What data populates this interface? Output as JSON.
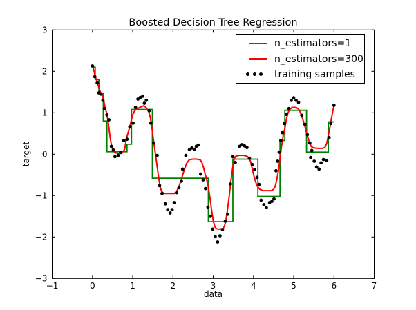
{
  "figure": {
    "kind": "matplotlib-figure",
    "background": "#ffffff"
  },
  "colors": {
    "estimator1_line": "#008000",
    "estimator300_line": "#ff0000",
    "scatter": "#000000",
    "axes": "#000000"
  },
  "chart_data": {
    "type": "line",
    "title": "Boosted Decision Tree Regression",
    "xlabel": "data",
    "ylabel": "target",
    "xlim": [
      -1,
      7
    ],
    "ylim": [
      -3,
      3
    ],
    "x_ticks": [
      -1,
      0,
      1,
      2,
      3,
      4,
      5,
      6,
      7
    ],
    "x_tick_labels": [
      "−1",
      "0",
      "1",
      "2",
      "3",
      "4",
      "5",
      "6",
      "7"
    ],
    "y_ticks": [
      -3,
      -2,
      -1,
      0,
      1,
      2,
      3
    ],
    "y_tick_labels": [
      "−3",
      "−2",
      "−1",
      "0",
      "1",
      "2",
      "3"
    ],
    "grid": false,
    "legend_position": "upper right",
    "series": [
      {
        "name": "n_estimators=1",
        "type": "step",
        "color": "#008000",
        "segments": [
          [
            0.0,
            0.07,
            2.1
          ],
          [
            0.07,
            0.16,
            1.8
          ],
          [
            0.16,
            0.27,
            1.47
          ],
          [
            0.27,
            0.36,
            0.8
          ],
          [
            0.36,
            0.86,
            0.06
          ],
          [
            0.86,
            0.97,
            0.24
          ],
          [
            0.97,
            1.49,
            1.08
          ],
          [
            1.49,
            2.88,
            -0.58
          ],
          [
            2.88,
            3.49,
            -1.63
          ],
          [
            3.49,
            4.11,
            -0.12
          ],
          [
            4.11,
            4.66,
            -1.02
          ],
          [
            4.66,
            4.78,
            0.33
          ],
          [
            4.78,
            5.32,
            1.06
          ],
          [
            5.32,
            5.86,
            0.05
          ],
          [
            5.86,
            6.0,
            0.78
          ]
        ]
      },
      {
        "name": "n_estimators=300",
        "type": "line",
        "color": "#ff0000",
        "points": [
          [
            0.0,
            2.15
          ],
          [
            0.04,
            2.0
          ],
          [
            0.08,
            1.85
          ],
          [
            0.12,
            1.75
          ],
          [
            0.16,
            1.6
          ],
          [
            0.2,
            1.5
          ],
          [
            0.24,
            1.44
          ],
          [
            0.28,
            1.3
          ],
          [
            0.32,
            1.1
          ],
          [
            0.36,
            0.98
          ],
          [
            0.4,
            0.7
          ],
          [
            0.44,
            0.4
          ],
          [
            0.48,
            0.18
          ],
          [
            0.52,
            0.08
          ],
          [
            0.58,
            0.03
          ],
          [
            0.66,
            0.02
          ],
          [
            0.74,
            0.04
          ],
          [
            0.8,
            0.12
          ],
          [
            0.84,
            0.35
          ],
          [
            0.88,
            0.5
          ],
          [
            0.92,
            0.62
          ],
          [
            0.96,
            0.8
          ],
          [
            1.0,
            0.95
          ],
          [
            1.05,
            1.05
          ],
          [
            1.12,
            1.1
          ],
          [
            1.2,
            1.14
          ],
          [
            1.28,
            1.17
          ],
          [
            1.34,
            1.12
          ],
          [
            1.4,
            1.02
          ],
          [
            1.44,
            0.88
          ],
          [
            1.48,
            0.62
          ],
          [
            1.52,
            0.32
          ],
          [
            1.56,
            0.05
          ],
          [
            1.6,
            -0.25
          ],
          [
            1.64,
            -0.52
          ],
          [
            1.68,
            -0.78
          ],
          [
            1.72,
            -0.9
          ],
          [
            1.78,
            -0.95
          ],
          [
            2.04,
            -0.95
          ],
          [
            2.1,
            -0.88
          ],
          [
            2.16,
            -0.75
          ],
          [
            2.22,
            -0.57
          ],
          [
            2.28,
            -0.38
          ],
          [
            2.34,
            -0.22
          ],
          [
            2.4,
            -0.14
          ],
          [
            2.48,
            -0.12
          ],
          [
            2.6,
            -0.12
          ],
          [
            2.68,
            -0.14
          ],
          [
            2.72,
            -0.2
          ],
          [
            2.76,
            -0.32
          ],
          [
            2.8,
            -0.48
          ],
          [
            2.84,
            -0.62
          ],
          [
            2.88,
            -0.8
          ],
          [
            2.92,
            -1.05
          ],
          [
            2.96,
            -1.35
          ],
          [
            3.0,
            -1.6
          ],
          [
            3.04,
            -1.75
          ],
          [
            3.08,
            -1.8
          ],
          [
            3.14,
            -1.81
          ],
          [
            3.24,
            -1.8
          ],
          [
            3.28,
            -1.74
          ],
          [
            3.32,
            -1.58
          ],
          [
            3.36,
            -1.3
          ],
          [
            3.4,
            -1.0
          ],
          [
            3.44,
            -0.65
          ],
          [
            3.48,
            -0.35
          ],
          [
            3.52,
            -0.12
          ],
          [
            3.56,
            -0.05
          ],
          [
            3.64,
            -0.03
          ],
          [
            3.76,
            -0.03
          ],
          [
            3.84,
            -0.05
          ],
          [
            3.9,
            -0.1
          ],
          [
            3.94,
            -0.22
          ],
          [
            3.98,
            -0.4
          ],
          [
            4.02,
            -0.55
          ],
          [
            4.06,
            -0.68
          ],
          [
            4.1,
            -0.78
          ],
          [
            4.16,
            -0.85
          ],
          [
            4.24,
            -0.88
          ],
          [
            4.44,
            -0.88
          ],
          [
            4.5,
            -0.85
          ],
          [
            4.54,
            -0.78
          ],
          [
            4.58,
            -0.62
          ],
          [
            4.62,
            -0.4
          ],
          [
            4.66,
            -0.1
          ],
          [
            4.7,
            0.2
          ],
          [
            4.74,
            0.45
          ],
          [
            4.78,
            0.62
          ],
          [
            4.82,
            0.85
          ],
          [
            4.86,
            1.0
          ],
          [
            4.9,
            1.08
          ],
          [
            4.96,
            1.13
          ],
          [
            5.06,
            1.13
          ],
          [
            5.12,
            1.09
          ],
          [
            5.16,
            1.02
          ],
          [
            5.2,
            0.92
          ],
          [
            5.26,
            0.74
          ],
          [
            5.32,
            0.52
          ],
          [
            5.38,
            0.32
          ],
          [
            5.44,
            0.18
          ],
          [
            5.5,
            0.15
          ],
          [
            5.6,
            0.14
          ],
          [
            5.72,
            0.14
          ],
          [
            5.78,
            0.17
          ],
          [
            5.82,
            0.26
          ],
          [
            5.86,
            0.45
          ],
          [
            5.9,
            0.65
          ],
          [
            5.94,
            0.88
          ],
          [
            5.98,
            1.08
          ],
          [
            6.0,
            1.16
          ]
        ]
      },
      {
        "name": "training samples",
        "type": "scatter",
        "color": "#000000",
        "points": [
          [
            0.0,
            2.13
          ],
          [
            0.06,
            1.87
          ],
          [
            0.12,
            1.72
          ],
          [
            0.16,
            1.48
          ],
          [
            0.21,
            1.45
          ],
          [
            0.26,
            1.3
          ],
          [
            0.3,
            1.1
          ],
          [
            0.36,
            0.95
          ],
          [
            0.41,
            0.83
          ],
          [
            0.47,
            0.19
          ],
          [
            0.52,
            0.1
          ],
          [
            0.56,
            -0.06
          ],
          [
            0.64,
            -0.03
          ],
          [
            0.7,
            0.04
          ],
          [
            0.78,
            0.33
          ],
          [
            0.86,
            0.36
          ],
          [
            0.93,
            0.66
          ],
          [
            1.01,
            0.75
          ],
          [
            1.07,
            1.13
          ],
          [
            1.13,
            1.33
          ],
          [
            1.19,
            1.37
          ],
          [
            1.25,
            1.4
          ],
          [
            1.29,
            1.23
          ],
          [
            1.34,
            1.3
          ],
          [
            1.41,
            1.05
          ],
          [
            1.45,
            0.75
          ],
          [
            1.52,
            0.27
          ],
          [
            1.61,
            -0.03
          ],
          [
            1.67,
            -0.76
          ],
          [
            1.73,
            -0.95
          ],
          [
            1.81,
            -1.2
          ],
          [
            1.87,
            -1.34
          ],
          [
            1.93,
            -1.42
          ],
          [
            1.98,
            -1.34
          ],
          [
            2.03,
            -1.17
          ],
          [
            2.09,
            -0.93
          ],
          [
            2.15,
            -0.81
          ],
          [
            2.21,
            -0.65
          ],
          [
            2.24,
            -0.36
          ],
          [
            2.32,
            -0.03
          ],
          [
            2.41,
            0.11
          ],
          [
            2.47,
            0.15
          ],
          [
            2.53,
            0.12
          ],
          [
            2.58,
            0.19
          ],
          [
            2.63,
            0.22
          ],
          [
            2.69,
            -0.48
          ],
          [
            2.75,
            -0.62
          ],
          [
            2.81,
            -0.83
          ],
          [
            2.87,
            -1.28
          ],
          [
            2.93,
            -1.5
          ],
          [
            2.99,
            -1.81
          ],
          [
            3.05,
            -1.99
          ],
          [
            3.11,
            -2.12
          ],
          [
            3.17,
            -1.97
          ],
          [
            3.23,
            -1.82
          ],
          [
            3.3,
            -1.62
          ],
          [
            3.36,
            -1.45
          ],
          [
            3.43,
            -0.72
          ],
          [
            3.49,
            -0.06
          ],
          [
            3.55,
            -0.2
          ],
          [
            3.66,
            0.19
          ],
          [
            3.72,
            0.23
          ],
          [
            3.78,
            0.2
          ],
          [
            3.84,
            0.16
          ],
          [
            3.9,
            -0.1
          ],
          [
            3.97,
            -0.25
          ],
          [
            4.03,
            -0.37
          ],
          [
            4.09,
            -0.56
          ],
          [
            4.14,
            -0.73
          ],
          [
            4.19,
            -1.11
          ],
          [
            4.26,
            -1.22
          ],
          [
            4.32,
            -1.29
          ],
          [
            4.4,
            -1.17
          ],
          [
            4.46,
            -1.14
          ],
          [
            4.51,
            -1.08
          ],
          [
            4.56,
            -0.4
          ],
          [
            4.6,
            -0.17
          ],
          [
            4.64,
            0.05
          ],
          [
            4.68,
            0.33
          ],
          [
            4.72,
            0.52
          ],
          [
            4.77,
            0.74
          ],
          [
            4.82,
            0.96
          ],
          [
            4.88,
            1.1
          ],
          [
            4.94,
            1.3
          ],
          [
            5.0,
            1.36
          ],
          [
            5.06,
            1.3
          ],
          [
            5.12,
            1.25
          ],
          [
            5.2,
            0.94
          ],
          [
            5.28,
            0.72
          ],
          [
            5.34,
            0.47
          ],
          [
            5.4,
            0.27
          ],
          [
            5.42,
            -0.08
          ],
          [
            5.45,
            0.09
          ],
          [
            5.51,
            -0.17
          ],
          [
            5.57,
            -0.31
          ],
          [
            5.63,
            -0.36
          ],
          [
            5.68,
            -0.21
          ],
          [
            5.74,
            -0.13
          ],
          [
            5.82,
            -0.15
          ],
          [
            5.88,
            0.4
          ],
          [
            5.92,
            0.74
          ],
          [
            6.0,
            1.18
          ]
        ]
      }
    ]
  }
}
